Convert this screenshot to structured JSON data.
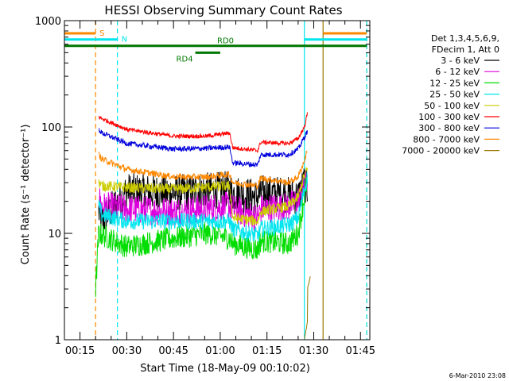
{
  "chart_data": {
    "type": "line",
    "title": "HESSI Observing Summary Count Rates",
    "xlabel": "Start Time (18-May-09 00:10:02)",
    "ylabel": "Count Rate (s⁻¹ detector⁻¹)",
    "xlim": [
      "00:10",
      "01:48"
    ],
    "ylim": [
      1,
      1000
    ],
    "yscale": "log",
    "x_ticks": [
      "00:15",
      "00:30",
      "00:45",
      "01:00",
      "01:15",
      "01:30",
      "01:45"
    ],
    "y_ticks": [
      "1",
      "10",
      "100",
      "1000"
    ],
    "grid": false,
    "legend": {
      "placement": "right",
      "header": [
        "Det 1,3,4,5,6,9,",
        "FDecim 1, Att 0"
      ]
    },
    "series": [
      {
        "name": "3 - 6 keV",
        "color": "#000000",
        "x": [
          "00:21",
          "00:22",
          "00:30",
          "00:45",
          "01:03",
          "01:04",
          "01:12",
          "01:13",
          "01:22",
          "01:25",
          "01:27",
          "01:28"
        ],
        "y": [
          16,
          13,
          25,
          24,
          26,
          24,
          22,
          24,
          23,
          22,
          30,
          26
        ]
      },
      {
        "name": "6 - 12 keV",
        "color": "#dd00dd",
        "x": [
          "00:21",
          "00:22",
          "00:30",
          "00:45",
          "01:03",
          "01:04",
          "01:12",
          "01:13",
          "01:22",
          "01:25",
          "01:27",
          "01:28"
        ],
        "y": [
          22,
          18,
          17,
          16,
          18,
          17,
          14,
          17,
          18,
          20,
          28,
          32
        ]
      },
      {
        "name": "12 - 25 keV",
        "color": "#00dd00",
        "x": [
          "00:20",
          "00:21",
          "00:30",
          "00:45",
          "00:56",
          "01:03",
          "01:04",
          "01:12",
          "01:13",
          "01:22",
          "01:25",
          "01:27",
          "01:28"
        ],
        "y": [
          3,
          10,
          7.5,
          9,
          10,
          9,
          8,
          7,
          8.5,
          8,
          10,
          22,
          32
        ]
      },
      {
        "name": "25 - 50 keV",
        "color": "#00e5ee",
        "x": [
          "00:21",
          "00:22",
          "00:30",
          "00:45",
          "01:03",
          "01:04",
          "01:12",
          "01:13",
          "01:22",
          "01:25",
          "01:27",
          "01:28"
        ],
        "y": [
          18,
          15,
          13,
          13,
          13,
          11,
          9.5,
          11,
          12,
          14,
          26,
          34
        ]
      },
      {
        "name": "50 - 100 keV",
        "color": "#cccc00",
        "x": [
          "00:21",
          "00:22",
          "00:30",
          "00:45",
          "01:03",
          "01:04",
          "01:12",
          "01:13",
          "01:22",
          "01:25",
          "01:27",
          "01:28"
        ],
        "y": [
          30,
          28,
          27,
          26,
          28,
          14,
          13,
          16,
          18,
          22,
          35,
          40
        ]
      },
      {
        "name": "100 - 300 keV",
        "color": "#ff0000",
        "x": [
          "00:21",
          "00:22",
          "00:30",
          "00:45",
          "00:56",
          "01:03",
          "01:04",
          "01:12",
          "01:13",
          "01:22",
          "01:25",
          "01:27",
          "01:28"
        ],
        "y": [
          125,
          120,
          95,
          82,
          82,
          88,
          64,
          60,
          72,
          70,
          78,
          100,
          135
        ]
      },
      {
        "name": "300 - 800 keV",
        "color": "#0000dd",
        "x": [
          "00:21",
          "00:22",
          "00:30",
          "00:45",
          "00:56",
          "01:03",
          "01:04",
          "01:12",
          "01:13",
          "01:22",
          "01:25",
          "01:27",
          "01:28"
        ],
        "y": [
          95,
          88,
          70,
          62,
          63,
          65,
          46,
          44,
          55,
          55,
          62,
          80,
          92
        ]
      },
      {
        "name": "800 - 7000 keV",
        "color": "#ff8800",
        "x": [
          "00:21",
          "00:22",
          "00:30",
          "00:45",
          "00:56",
          "01:03",
          "01:04",
          "01:12",
          "01:13",
          "01:22",
          "01:25",
          "01:27",
          "01:28"
        ],
        "y": [
          55,
          50,
          40,
          34,
          34,
          36,
          30,
          28,
          33,
          30,
          34,
          48,
          62
        ]
      },
      {
        "name": "7000 - 20000 keV",
        "color": "#997700",
        "x": [
          "01:27",
          "01:28",
          "01:28",
          "01:29"
        ],
        "y": [
          1,
          1.5,
          3,
          4
        ]
      }
    ],
    "flags": [
      {
        "label": "S",
        "color": "#ff8800",
        "x_start": "00:10",
        "x_end": "00:20",
        "level": 760
      },
      {
        "label": "S",
        "color": "#ff8800",
        "x_start": "01:33",
        "x_end": "01:47",
        "level": 760
      },
      {
        "label": "N",
        "color": "#00e5ee",
        "x_start": "00:10",
        "x_end": "00:27",
        "level": 665
      },
      {
        "label": "N",
        "color": "#00e5ee",
        "x_start": "01:27",
        "x_end": "01:47",
        "level": 665
      },
      {
        "label": "RD0",
        "color": "#007700",
        "x_start": "00:10",
        "x_end": "01:47",
        "level": 580
      },
      {
        "label": "RD4",
        "color": "#007700",
        "x_start": "00:52",
        "x_end": "01:00",
        "level": 500
      }
    ],
    "vlines": [
      {
        "x": "00:20",
        "color": "#ff8800",
        "style": "dashed"
      },
      {
        "x": "00:27",
        "color": "#00e5ee",
        "style": "dashed"
      },
      {
        "x": "01:27",
        "color": "#00e5ee",
        "style": "solid"
      },
      {
        "x": "01:33",
        "color": "#997700",
        "style": "solid"
      },
      {
        "x": "01:47",
        "color": "#ff8800",
        "style": "dashed"
      },
      {
        "x": "01:47",
        "color": "#00e5ee",
        "style": "dashed"
      }
    ],
    "timestamp": "6-Mar-2010 23:08"
  }
}
